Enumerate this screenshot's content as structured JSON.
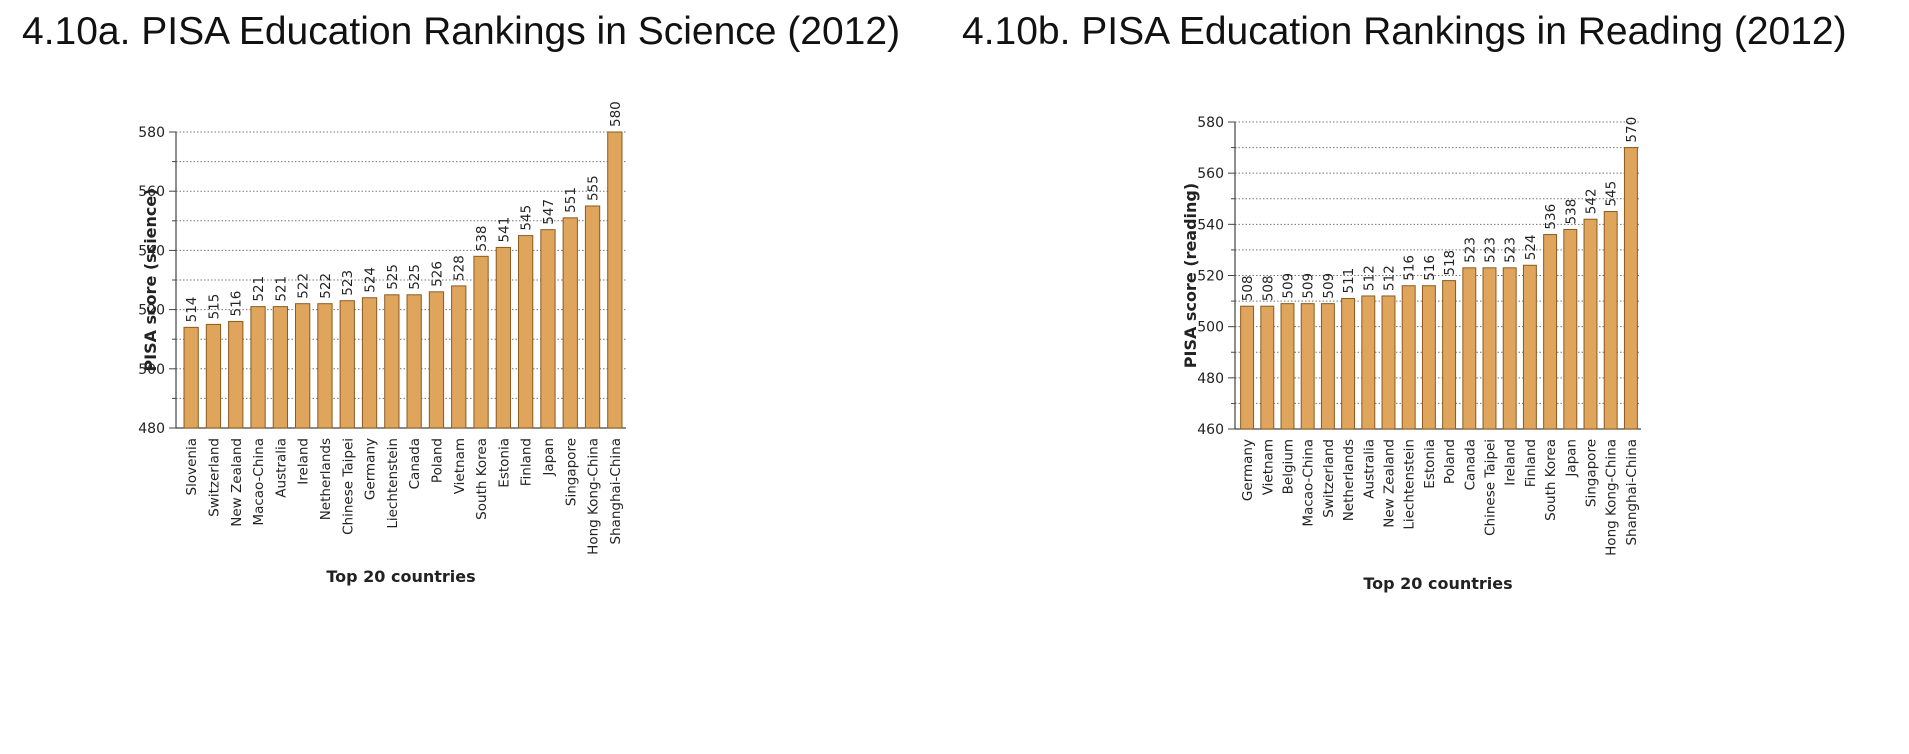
{
  "titles": {
    "left": "4.10a. PISA Education Rankings in Science (2012)",
    "right": "4.10b. PISA Education Rankings in Reading (2012)"
  },
  "colors": {
    "bar": "#E0A55C",
    "bar_stroke": "#8A5A1E",
    "grid": "#777777"
  },
  "chart_data": [
    {
      "type": "bar",
      "title": "4.10a. PISA Education Rankings in Science (2012)",
      "xlabel": "Top 20 countries",
      "ylabel": "PISA score (science)",
      "ylim": [
        480,
        580
      ],
      "yticks": [
        480,
        500,
        520,
        540,
        560,
        580
      ],
      "grid": true,
      "categories": [
        "Slovenia",
        "Switzerland",
        "New Zealand",
        "Macao-China",
        "Australia",
        "Ireland",
        "Netherlands",
        "Chinese Taipei",
        "Germany",
        "Liechtenstein",
        "Canada",
        "Poland",
        "Vietnam",
        "South Korea",
        "Estonia",
        "Finland",
        "Japan",
        "Singapore",
        "Hong Kong-China",
        "Shanghai-China"
      ],
      "values": [
        514,
        515,
        516,
        521,
        521,
        522,
        522,
        523,
        524,
        525,
        525,
        526,
        528,
        538,
        541,
        545,
        547,
        551,
        555,
        580
      ]
    },
    {
      "type": "bar",
      "title": "4.10b. PISA Education Rankings in Reading (2012)",
      "xlabel": "Top 20 countries",
      "ylabel": "PISA score (reading)",
      "ylim": [
        460,
        580
      ],
      "yticks": [
        460,
        480,
        500,
        520,
        540,
        560,
        580
      ],
      "grid": true,
      "categories": [
        "Germany",
        "Vietnam",
        "Belgium",
        "Macao-China",
        "Switzerland",
        "Netherlands",
        "Australia",
        "New Zealand",
        "Liechtenstein",
        "Estonia",
        "Poland",
        "Canada",
        "Chinese Taipei",
        "Ireland",
        "Finland",
        "South Korea",
        "Japan",
        "Singapore",
        "Hong Kong-China",
        "Shanghai-China"
      ],
      "values": [
        508,
        508,
        509,
        509,
        509,
        511,
        512,
        512,
        516,
        516,
        518,
        523,
        523,
        523,
        524,
        536,
        538,
        542,
        545,
        570
      ]
    }
  ]
}
